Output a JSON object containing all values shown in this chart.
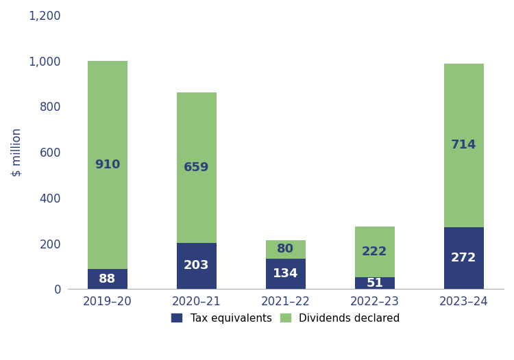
{
  "categories": [
    "2019–20",
    "2020–21",
    "2021–22",
    "2022–23",
    "2023–24"
  ],
  "tax_equivalents": [
    88,
    203,
    134,
    51,
    272
  ],
  "dividends_declared": [
    910,
    659,
    80,
    222,
    714
  ],
  "tax_color": "#2e3f7c",
  "dividends_color": "#90c47a",
  "ylabel": "$ million",
  "ylim": [
    0,
    1200
  ],
  "yticks": [
    0,
    200,
    400,
    600,
    800,
    1000,
    1200
  ],
  "legend_labels": [
    "Tax equivalents",
    "Dividends declared"
  ],
  "bar_width": 0.45,
  "label_fontsize": 13,
  "axis_fontsize": 12,
  "legend_fontsize": 11,
  "background_color": "#ffffff",
  "text_color_white": "#ffffff",
  "text_color_navy": "#2e3f7c",
  "axis_text_color": "#2e3f7c"
}
